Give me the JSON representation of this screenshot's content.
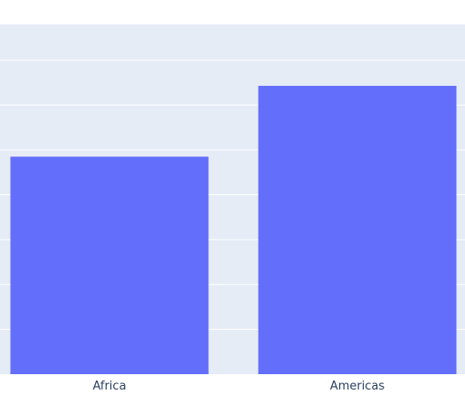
{
  "chart_data": {
    "type": "bar",
    "title": "",
    "xlabel": "",
    "ylabel": "",
    "categories": [
      "Africa",
      "Americas"
    ],
    "series": [
      {
        "values": [
          48.5,
          64.3
        ]
      }
    ],
    "ylim": [
      0,
      78
    ],
    "yticks": [
      0,
      10,
      20,
      30,
      40,
      50,
      60,
      70
    ],
    "grid": true,
    "colors": {
      "bar": "#636efa",
      "plot_bg": "#e5ecf6",
      "grid": "#ffffff",
      "tick_text": "#2a3f5f",
      "page_bg": "#ffffff"
    }
  }
}
